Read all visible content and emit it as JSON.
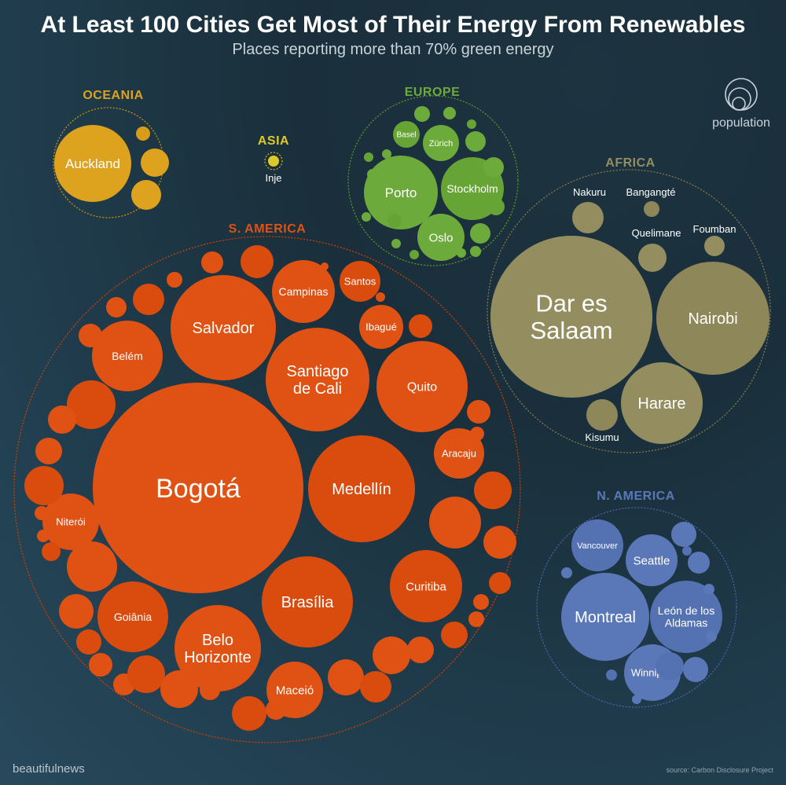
{
  "header": {
    "title": "At Least 100 Cities Get Most of Their Energy From Renewables",
    "subtitle": "Places reporting more than 70% green energy"
  },
  "legend": {
    "label": "population",
    "icon": "nested-circles-icon"
  },
  "footer": {
    "brand": "beautifulnews",
    "source": "source: Carbon Disclosure Project"
  },
  "chart_data": {
    "type": "bubble",
    "title": "At Least 100 Cities Get Most of Their Energy From Renewables",
    "subtitle": "Places reporting more than 70% green energy",
    "size_encodes": "population",
    "regions": [
      {
        "name": "OCEANIA",
        "color": "#dea31e",
        "labels": [
          "Auckland"
        ]
      },
      {
        "name": "ASIA",
        "color": "#dcc92a",
        "labels": [
          "Inje"
        ]
      },
      {
        "name": "EUROPE",
        "color": "#6daa3c",
        "labels": [
          "Basel",
          "Zürich",
          "Porto",
          "Stockholm",
          "Oslo"
        ]
      },
      {
        "name": "AFRICA",
        "color": "#948d60",
        "labels": [
          "Nakuru",
          "Bangangté",
          "Quelimane",
          "Foumban",
          "Dar es Salaam",
          "Nairobi",
          "Harare",
          "Kisumu"
        ]
      },
      {
        "name": "S. AMERICA",
        "color": "#df5214",
        "labels": [
          "Campinas",
          "Santos",
          "Salvador",
          "Ibagué",
          "Belém",
          "Santiago de Cali",
          "Quito",
          "Aracaju",
          "Bogotá",
          "Medellín",
          "Niterói",
          "Curitiba",
          "Brasília",
          "Goiânia",
          "Belo Horizonte",
          "Maceió"
        ]
      },
      {
        "name": "N. AMERICA",
        "color": "#5a78b8",
        "labels": [
          "Vancouver",
          "Seattle",
          "Montreal",
          "León de los Aldamas",
          "Winnipeg"
        ]
      }
    ]
  }
}
